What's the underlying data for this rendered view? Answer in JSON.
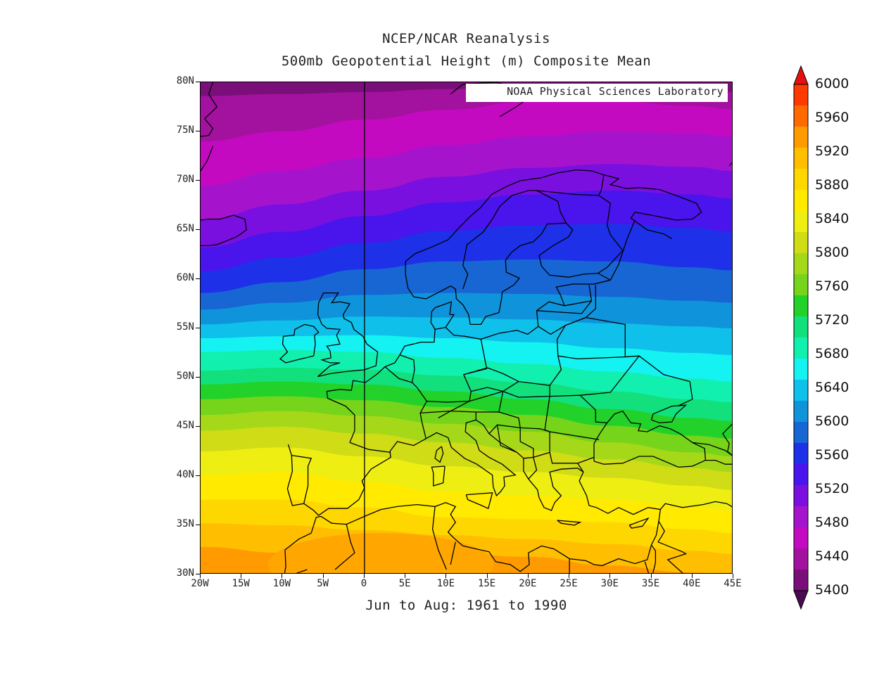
{
  "title": {
    "line1": "NCEP/NCAR Reanalysis",
    "line2": "500mb Geopotential Height (m) Composite Mean"
  },
  "subtitle": "Jun to Aug: 1961 to 1990",
  "credit": "NOAA Physical Sciences Laboratory",
  "map": {
    "lon_range": [
      -20,
      45
    ],
    "lat_range": [
      30,
      80
    ],
    "lon_ticks": [
      "20W",
      "15W",
      "10W",
      "5W",
      "0",
      "5E",
      "10E",
      "15E",
      "20E",
      "25E",
      "30E",
      "35E",
      "40E",
      "45E"
    ],
    "lat_ticks": [
      "80N",
      "75N",
      "70N",
      "65N",
      "60N",
      "55N",
      "50N",
      "45N",
      "40N",
      "35N",
      "30N"
    ],
    "prime_meridian_line": true,
    "variable": "500mb Geopotential Height (m)"
  },
  "colorbar": {
    "labels": [
      "6000",
      "5960",
      "5920",
      "5880",
      "5840",
      "5800",
      "5760",
      "5720",
      "5680",
      "5640",
      "5600",
      "5560",
      "5520",
      "5480",
      "5440",
      "5400"
    ],
    "colors": [
      "#4a0a52",
      "#7a0f7a",
      "#a3119f",
      "#c40ac0",
      "#a514cc",
      "#7a10e0",
      "#4a14ec",
      "#1e30e8",
      "#1766d4",
      "#0f94dc",
      "#0fc0ea",
      "#14f2f2",
      "#12f0b0",
      "#12e07c",
      "#22d22a",
      "#76d41a",
      "#a6d81a",
      "#d0dc16",
      "#eeee12",
      "#ffea00",
      "#ffd700",
      "#ffbf00",
      "#ff9b00",
      "#ff6a00",
      "#ff3a00",
      "#e61010"
    ]
  }
}
